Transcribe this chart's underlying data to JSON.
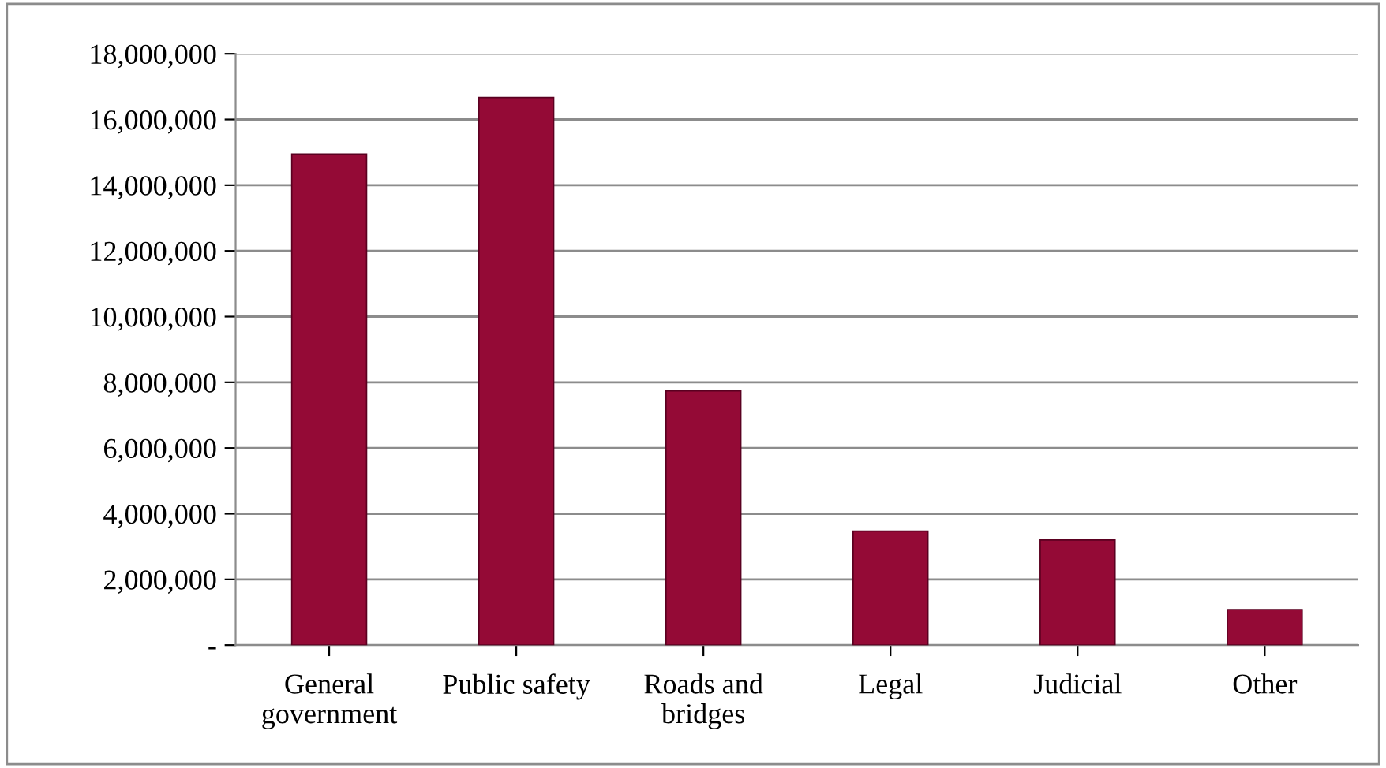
{
  "chart_data": {
    "type": "bar",
    "categories": [
      "General\ngovernment",
      "Public safety",
      "Roads and\nbridges",
      "Legal",
      "Judicial",
      "Other"
    ],
    "values": [
      14950000,
      16670000,
      7740000,
      3470000,
      3200000,
      1080000
    ],
    "color": "#940a36",
    "ylim": [
      0,
      18000000
    ],
    "yticks": [
      {
        "value": 0,
        "label": "-"
      },
      {
        "value": 2000000,
        "label": "2,000,000"
      },
      {
        "value": 4000000,
        "label": "4,000,000"
      },
      {
        "value": 6000000,
        "label": "6,000,000"
      },
      {
        "value": 8000000,
        "label": "8,000,000"
      },
      {
        "value": 10000000,
        "label": "10,000,000"
      },
      {
        "value": 12000000,
        "label": "12,000,000"
      },
      {
        "value": 14000000,
        "label": "14,000,000"
      },
      {
        "value": 16000000,
        "label": "16,000,000"
      },
      {
        "value": 18000000,
        "label": "18,000,000"
      }
    ],
    "grid": "y"
  }
}
